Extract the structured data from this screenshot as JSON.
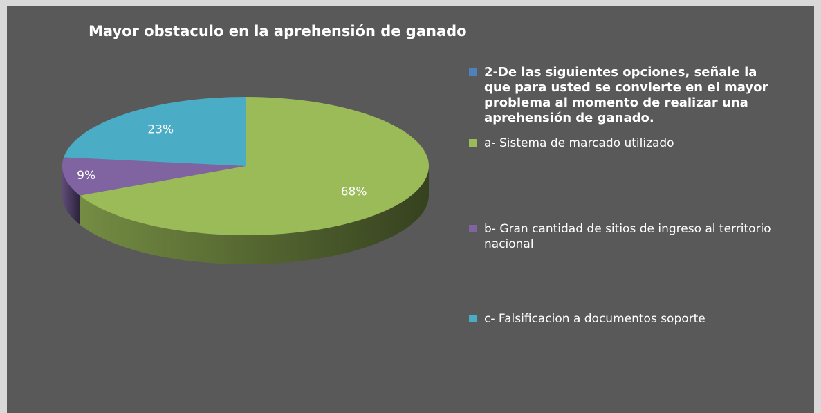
{
  "chart_data": {
    "type": "pie",
    "title": "Mayor obstaculo en la aprehensión de ganado",
    "categories": [
      "2-De las siguientes opciones, señale la que para usted se convierte en el mayor problema al momento de realizar una aprehensión de ganado.",
      "a- Sistema de marcado utilizado",
      "b- Gran cantidad de sitios de ingreso al territorio nacional",
      "c- Falsificacion a documentos soporte"
    ],
    "values": [
      null,
      68,
      9,
      23
    ],
    "value_labels": [
      null,
      "68%",
      "9%",
      "23%"
    ],
    "colors": [
      "#4f81bd",
      "#9bbb59",
      "#8064a2",
      "#4bacc6"
    ]
  }
}
